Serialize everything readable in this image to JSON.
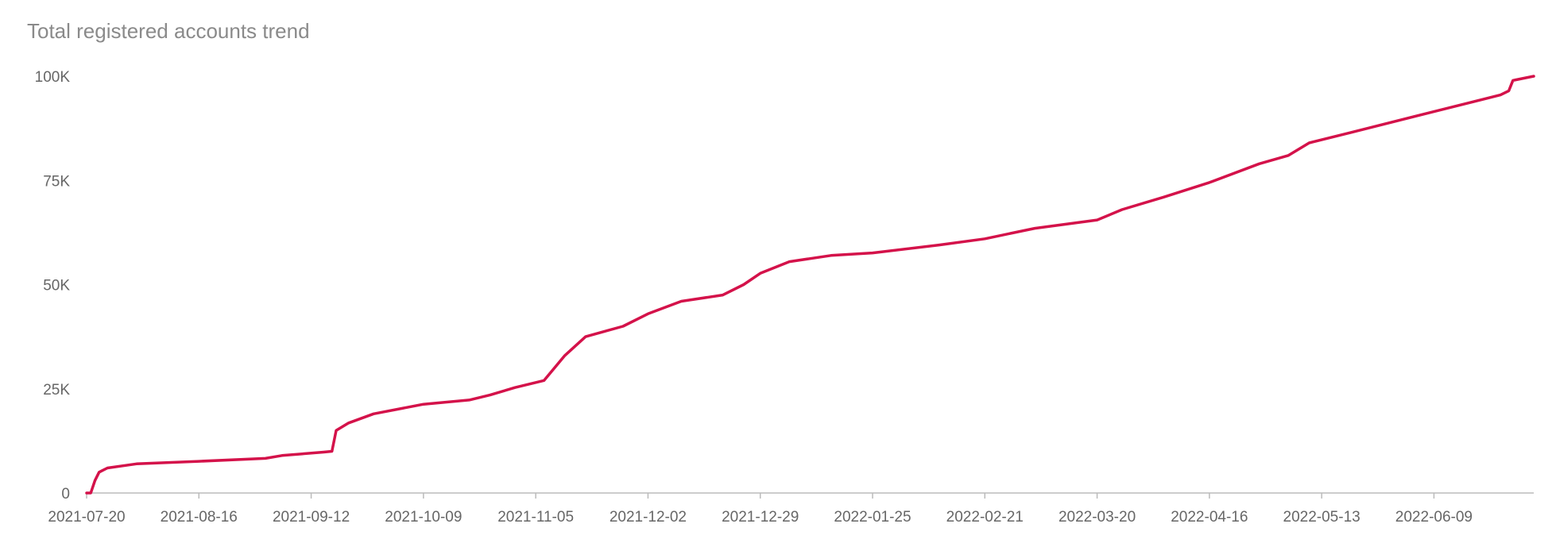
{
  "chart_data": {
    "type": "line",
    "title": "Total registered accounts trend",
    "xlim": [
      "2021-07-20",
      "2022-07-03"
    ],
    "xticks": [
      "2021-07-20",
      "2021-08-16",
      "2021-09-12",
      "2021-10-09",
      "2021-11-05",
      "2021-12-02",
      "2021-12-29",
      "2022-01-25",
      "2022-02-21",
      "2022-03-20",
      "2022-04-16",
      "2022-05-13",
      "2022-06-09"
    ],
    "ylim": [
      0,
      100000
    ],
    "yticks": [
      0,
      {
        "value": 25000,
        "label": "25K"
      },
      {
        "value": 50000,
        "label": "50K"
      },
      {
        "value": 75000,
        "label": "75K"
      },
      {
        "value": 100000,
        "label": "100K"
      }
    ],
    "x": [
      "2021-07-20",
      "2021-07-21",
      "2021-07-22",
      "2021-07-23",
      "2021-07-25",
      "2021-08-01",
      "2021-08-16",
      "2021-09-01",
      "2021-09-05",
      "2021-09-15",
      "2021-09-17",
      "2021-09-18",
      "2021-09-21",
      "2021-09-27",
      "2021-10-09",
      "2021-10-20",
      "2021-10-25",
      "2021-10-31",
      "2021-11-07",
      "2021-11-12",
      "2021-11-17",
      "2021-11-26",
      "2021-12-02",
      "2021-12-10",
      "2021-12-20",
      "2021-12-25",
      "2021-12-29",
      "2022-01-05",
      "2022-01-15",
      "2022-01-25",
      "2022-02-10",
      "2022-02-21",
      "2022-03-05",
      "2022-03-20",
      "2022-03-26",
      "2022-04-05",
      "2022-04-16",
      "2022-04-28",
      "2022-05-05",
      "2022-05-10",
      "2022-05-20",
      "2022-06-09",
      "2022-06-25",
      "2022-06-27",
      "2022-06-28",
      "2022-07-03"
    ],
    "series": [
      {
        "color": "#d4124a",
        "values": [
          0,
          0,
          3000,
          5000,
          6000,
          7000,
          7600,
          8300,
          9000,
          9800,
          10000,
          15000,
          16800,
          19000,
          21300,
          22300,
          23500,
          25300,
          27000,
          33000,
          37500,
          40000,
          43000,
          46000,
          47500,
          50000,
          52700,
          55500,
          57000,
          57600,
          59500,
          61000,
          63500,
          65500,
          68000,
          71000,
          74500,
          79000,
          81000,
          84000,
          86500,
          91500,
          95500,
          96500,
          99000,
          100000
        ]
      }
    ]
  }
}
